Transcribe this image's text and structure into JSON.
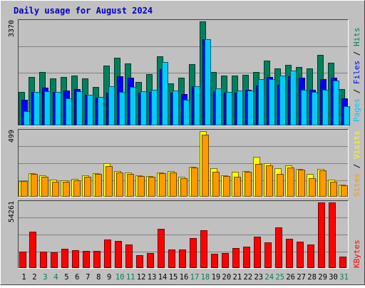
{
  "chart_data": {
    "type": "bar",
    "title": "Daily usage for August 2024",
    "categories": [
      "1",
      "2",
      "3",
      "4",
      "5",
      "6",
      "7",
      "8",
      "9",
      "10",
      "11",
      "12",
      "13",
      "14",
      "15",
      "16",
      "17",
      "18",
      "19",
      "20",
      "21",
      "22",
      "23",
      "24",
      "25",
      "26",
      "27",
      "28",
      "29",
      "30",
      "31"
    ],
    "weekend_days": [
      "3",
      "4",
      "10",
      "11",
      "17",
      "18",
      "24",
      "25",
      "31"
    ],
    "grid": true,
    "panels": [
      {
        "name": "hits-files-pages",
        "ymax_label": "3370",
        "ymax": 3370,
        "series": [
          {
            "name": "Hits",
            "color": "#00805c",
            "values": [
              1075,
              1580,
              1720,
              1525,
              1575,
              1615,
              1525,
              1250,
              1930,
              2200,
              2005,
              1410,
              1660,
              2250,
              1370,
              1550,
              1980,
              3370,
              1740,
              1625,
              1620,
              1645,
              1730,
              2090,
              1855,
              1965,
              1900,
              1840,
              2295,
              2035,
              1170
            ]
          },
          {
            "name": "Files",
            "color": "#0000ff",
            "values": [
              825,
              1080,
              1220,
              1085,
              1140,
              1180,
              1000,
              900,
              1070,
              1600,
              1545,
              1060,
              1080,
              1830,
              1070,
              1015,
              1280,
              2800,
              1115,
              1060,
              1065,
              1160,
              1290,
              1575,
              1325,
              1600,
              1535,
              1155,
              1505,
              1555,
              880
            ]
          },
          {
            "name": "Pages",
            "color": "#00ccff",
            "values": [
              465,
              1075,
              1115,
              1090,
              885,
              1100,
              985,
              925,
              1265,
              1075,
              1240,
              1115,
              1155,
              2060,
              1135,
              825,
              1280,
              2800,
              1200,
              1085,
              1125,
              1125,
              1500,
              1500,
              1625,
              1775,
              1155,
              1075,
              1155,
              1450,
              615
            ]
          }
        ],
        "side_labels": [
          {
            "text": "Pages",
            "color": "#00c8ff"
          },
          {
            "text": " / ",
            "color": "#000000"
          },
          {
            "text": "Files",
            "color": "#0000ff"
          },
          {
            "text": " / ",
            "color": "#000000"
          },
          {
            "text": "Hits",
            "color": "#00805c"
          }
        ]
      },
      {
        "name": "visits-sites",
        "ymax_label": "499",
        "ymax": 499,
        "series": [
          {
            "name": "Visits",
            "color": "#ffff00",
            "values": [
              117,
              181,
              161,
              132,
              125,
              136,
              164,
              177,
              254,
              194,
              184,
              164,
              155,
              187,
              196,
              150,
              228,
              499,
              218,
              163,
              188,
              196,
              302,
              255,
              219,
              240,
              214,
              175,
              210,
              128,
              94
            ]
          },
          {
            "name": "Sites",
            "color": "#ff9900",
            "values": [
              117,
              172,
              150,
              116,
              116,
              127,
              153,
              172,
              231,
              182,
              172,
              157,
              150,
              180,
              182,
              143,
              221,
              474,
              189,
              156,
              154,
              188,
              247,
              240,
              173,
              225,
              204,
              140,
              201,
              115,
              88
            ]
          }
        ],
        "side_labels": [
          {
            "text": "Sites",
            "color": "#ff9900"
          },
          {
            "text": " / ",
            "color": "#000000"
          },
          {
            "text": "Visits",
            "color": "#ffff00"
          }
        ]
      },
      {
        "name": "kbytes",
        "ymax_label": "54261",
        "ymax": 54261,
        "series": [
          {
            "name": "KBytes",
            "color": "#ff0000",
            "values": [
              13800,
              30000,
              13400,
              13000,
              16000,
              15000,
              14300,
              14000,
              23500,
              22700,
              19600,
              10500,
              12200,
              32200,
              15500,
              15600,
              24600,
              31500,
              11600,
              12400,
              16300,
              17900,
              26000,
              21400,
              33800,
              24000,
              22100,
              19700,
              54261,
              54261,
              9400
            ]
          }
        ],
        "side_labels": [
          {
            "text": "KBytes",
            "color": "#ff0000"
          }
        ]
      }
    ]
  }
}
